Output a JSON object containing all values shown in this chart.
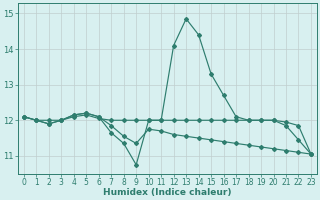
{
  "x": [
    0,
    1,
    2,
    3,
    4,
    5,
    6,
    7,
    8,
    9,
    10,
    11,
    12,
    13,
    14,
    15,
    16,
    17,
    18,
    19,
    20,
    21,
    22,
    23
  ],
  "line_curve": [
    12.1,
    12.0,
    11.9,
    12.0,
    12.15,
    12.2,
    12.1,
    11.65,
    11.35,
    10.75,
    12.0,
    12.0,
    14.1,
    14.85,
    14.4,
    13.3,
    12.7,
    12.1,
    12.0,
    12.0,
    12.0,
    11.85,
    11.45,
    11.05
  ],
  "line_flat": [
    12.1,
    12.0,
    12.0,
    12.0,
    12.1,
    12.15,
    12.05,
    12.0,
    12.0,
    12.0,
    12.0,
    12.0,
    12.0,
    12.0,
    12.0,
    12.0,
    12.0,
    12.0,
    12.0,
    12.0,
    12.0,
    11.95,
    11.85,
    11.05
  ],
  "line_slope": [
    12.1,
    12.0,
    11.9,
    12.0,
    12.15,
    12.2,
    12.1,
    11.85,
    11.55,
    11.35,
    11.75,
    11.7,
    11.6,
    11.55,
    11.5,
    11.45,
    11.4,
    11.35,
    11.3,
    11.25,
    11.2,
    11.15,
    11.1,
    11.05
  ],
  "line_color": "#2e7d6e",
  "bg_color": "#d8f0f0",
  "grid_color_major": "#c0cece",
  "grid_color_minor": "#dce8e8",
  "xlabel": "Humidex (Indice chaleur)",
  "ylim": [
    10.5,
    15.3
  ],
  "xlim": [
    -0.5,
    23.5
  ],
  "yticks": [
    11,
    12,
    13,
    14,
    15
  ],
  "xticks": [
    0,
    1,
    2,
    3,
    4,
    5,
    6,
    7,
    8,
    9,
    10,
    11,
    12,
    13,
    14,
    15,
    16,
    17,
    18,
    19,
    20,
    21,
    22,
    23
  ],
  "tick_fontsize": 5.5,
  "xlabel_fontsize": 6.5
}
